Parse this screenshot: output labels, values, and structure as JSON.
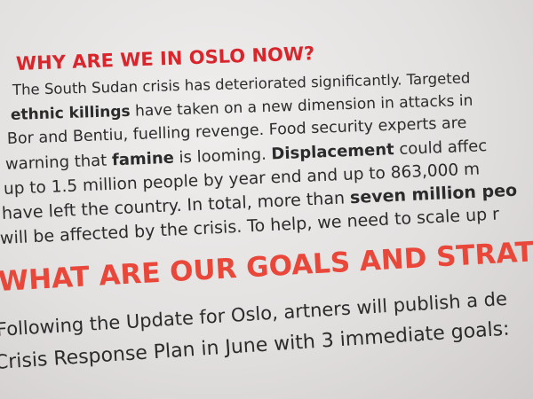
{
  "sections": [
    {
      "heading": "WHY ARE WE IN OSLO NOW?",
      "lines": [
        [
          {
            "text": "The South Sudan crisis has deteriorated significantly. Targeted"
          }
        ],
        [
          {
            "text": "ethnic killings",
            "bold": true
          },
          {
            "text": " have taken on a new dimension in attacks in"
          }
        ],
        [
          {
            "text": "Bor and Bentiu, fuelling revenge.  Food security experts are"
          }
        ],
        [
          {
            "text": "warning that "
          },
          {
            "text": "famine",
            "bold": true
          },
          {
            "text": " is looming. "
          },
          {
            "text": "Displacement",
            "bold": true
          },
          {
            "text": " could affec"
          }
        ],
        [
          {
            "text": "up to 1.5 million people by year end and up to 863,000 m"
          }
        ],
        [
          {
            "text": "have left the country. In total, more than "
          },
          {
            "text": "seven million peo",
            "bold": true
          }
        ],
        [
          {
            "text": "will be affected by the crisis. To help, we need to scale up r"
          }
        ]
      ]
    },
    {
      "heading": "WHAT ARE OUR GOALS AND STRATEGY",
      "lines": [
        [
          {
            "text": "Following the Update for Oslo, artners will publish a de"
          }
        ],
        [
          {
            "text": "Crisis Response Plan in June with 3 immediate goals:"
          }
        ]
      ]
    }
  ]
}
